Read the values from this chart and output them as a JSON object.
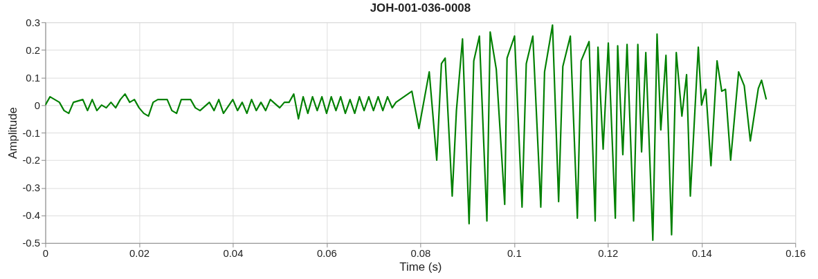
{
  "chart_data": {
    "type": "line",
    "title": "JOH-001-036-0008",
    "xlabel": "Time (s)",
    "ylabel": "Amplitude",
    "xlim": [
      0,
      0.16
    ],
    "xticks": [
      0,
      0.02,
      0.04,
      0.06,
      0.08,
      0.1,
      0.12,
      0.14,
      0.16
    ],
    "ylim": [
      -0.5,
      0.3
    ],
    "yticks": [
      -0.5,
      -0.4,
      -0.3,
      -0.2,
      -0.1,
      0,
      0.1,
      0.2,
      0.3
    ],
    "grid": true,
    "line_style": "solid",
    "series": [
      {
        "color": "#008000",
        "x": [
          0,
          0.001,
          0.003,
          0.004,
          0.005,
          0.006,
          0.008,
          0.009,
          0.01,
          0.011,
          0.012,
          0.013,
          0.014,
          0.015,
          0.016,
          0.017,
          0.018,
          0.019,
          0.02,
          0.021,
          0.022,
          0.023,
          0.024,
          0.026,
          0.027,
          0.028,
          0.029,
          0.031,
          0.032,
          0.033,
          0.035,
          0.036,
          0.037,
          0.038,
          0.04,
          0.041,
          0.042,
          0.043,
          0.044,
          0.045,
          0.046,
          0.047,
          0.048,
          0.05,
          0.051,
          0.052,
          0.053,
          0.054,
          0.055,
          0.056,
          0.057,
          0.058,
          0.059,
          0.06,
          0.061,
          0.062,
          0.063,
          0.064,
          0.065,
          0.066,
          0.067,
          0.068,
          0.069,
          0.07,
          0.071,
          0.072,
          0.073,
          0.074,
          0.0748,
          0.0782,
          0.0797,
          0.0819,
          0.0835,
          0.0845,
          0.0853,
          0.0868,
          0.0877,
          0.089,
          0.0904,
          0.0914,
          0.0926,
          0.0942,
          0.0949,
          0.0962,
          0.098,
          0.0985,
          0.1001,
          0.1017,
          0.1026,
          0.104,
          0.1057,
          0.1065,
          0.1082,
          0.1095,
          0.1104,
          0.112,
          0.1135,
          0.1143,
          0.116,
          0.1173,
          0.1179,
          0.119,
          0.1201,
          0.1216,
          0.1221,
          0.1232,
          0.1241,
          0.1255,
          0.1264,
          0.1272,
          0.1281,
          0.1296,
          0.1305,
          0.1313,
          0.1324,
          0.1336,
          0.1346,
          0.1358,
          0.1368,
          0.1376,
          0.1393,
          0.14,
          0.1409,
          0.142,
          0.1433,
          0.1443,
          0.1451,
          0.1462,
          0.1479,
          0.1491,
          0.1504,
          0.1521,
          0.1528,
          0.1538
        ],
        "values": [
          0,
          0.03,
          0.01,
          -0.02,
          -0.03,
          0.01,
          0.02,
          -0.02,
          0.02,
          -0.02,
          0.0,
          -0.01,
          0.01,
          -0.01,
          0.02,
          0.04,
          0.01,
          0.02,
          -0.01,
          -0.03,
          -0.04,
          0.01,
          0.02,
          0.02,
          -0.02,
          -0.03,
          0.02,
          0.02,
          -0.01,
          -0.02,
          0.01,
          -0.02,
          0.02,
          -0.03,
          0.02,
          -0.02,
          0.01,
          -0.03,
          0.02,
          -0.02,
          0.01,
          -0.02,
          0.02,
          -0.01,
          0.01,
          0.01,
          0.04,
          -0.05,
          0.03,
          -0.03,
          0.03,
          -0.02,
          0.03,
          -0.03,
          0.03,
          -0.02,
          0.03,
          -0.03,
          0.02,
          -0.03,
          0.03,
          -0.02,
          0.03,
          -0.02,
          0.03,
          -0.02,
          0.03,
          -0.01,
          0.01,
          0.05,
          -0.085,
          0.12,
          -0.2,
          0.15,
          0.17,
          -0.33,
          -0.02,
          0.24,
          -0.43,
          0.16,
          0.25,
          -0.42,
          0.265,
          0.13,
          -0.36,
          0.17,
          0.25,
          -0.37,
          0.15,
          0.25,
          -0.37,
          0.12,
          0.29,
          -0.35,
          0.14,
          0.25,
          -0.41,
          0.16,
          0.23,
          -0.42,
          0.21,
          -0.16,
          0.225,
          -0.41,
          0.215,
          -0.18,
          0.22,
          -0.42,
          0.22,
          -0.17,
          0.19,
          -0.49,
          0.257,
          -0.09,
          0.18,
          -0.47,
          0.19,
          -0.04,
          0.11,
          -0.33,
          0.21,
          0.0,
          0.057,
          -0.22,
          0.16,
          0.05,
          0.057,
          -0.2,
          0.12,
          0.07,
          -0.13,
          0.06,
          0.09,
          0.02
        ]
      }
    ]
  }
}
